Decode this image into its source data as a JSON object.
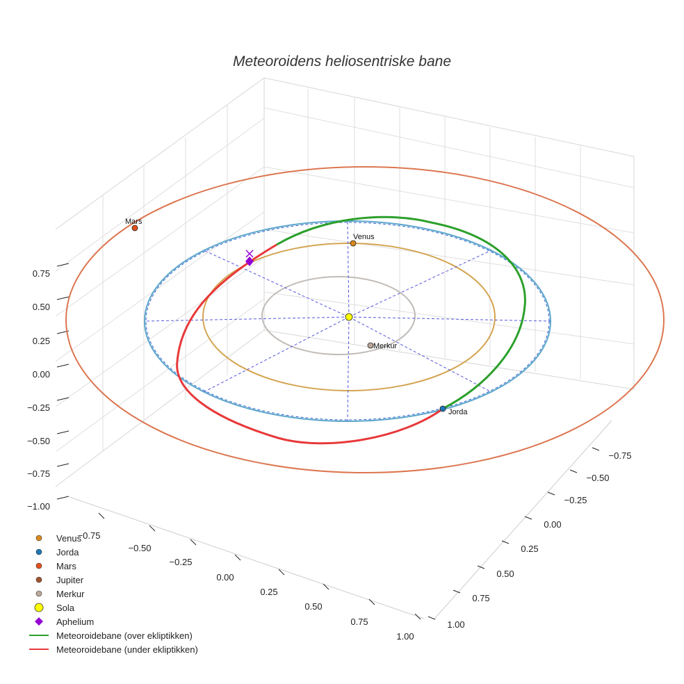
{
  "chart_data": {
    "type": "scatter3d",
    "title": "Meteoroidens heliosentriske bane",
    "axes": {
      "z_ticks": [
        "0.75",
        "0.50",
        "0.25",
        "0.00",
        "−0.25",
        "−0.50",
        "−0.75",
        "−1.00"
      ],
      "x_ticks": [
        "−0.75",
        "−0.50",
        "−0.25",
        "0.00",
        "0.25",
        "0.50",
        "0.75",
        "1.00"
      ],
      "y_ticks": [
        "−0.75",
        "−0.50",
        "−0.25",
        "0.00",
        "0.25",
        "0.50",
        "0.75",
        "1.00"
      ]
    },
    "orbits": [
      {
        "name": "Merkur-bane",
        "radius_au": 0.387,
        "color": "#c0bbb6"
      },
      {
        "name": "Venus-bane",
        "radius_au": 0.723,
        "color": "#d4a451"
      },
      {
        "name": "Jorda-bane",
        "radius_au": 1.0,
        "color": "#5ca6cc"
      },
      {
        "name": "Mars-bane",
        "radius_au": 1.524,
        "color": "#dc7650"
      }
    ],
    "planets": [
      {
        "name": "Venus",
        "label": "Venus",
        "color": "#d98a1e",
        "angle_deg": 90
      },
      {
        "name": "Jorda",
        "label": "Jorda",
        "color": "#1f77b4",
        "angle_deg": -52
      },
      {
        "name": "Mars",
        "label": "Mars",
        "color": "#e0501c",
        "angle_deg": 137
      },
      {
        "name": "Merkur",
        "label": "Merkur",
        "color": "#bca89a",
        "angle_deg": -72
      },
      {
        "name": "Sola",
        "label": "",
        "color": "#ffff00",
        "angle_deg": 0
      }
    ],
    "meteoroid": {
      "perihelion_au": 1.0,
      "aphelion_au": 1.08,
      "inclination_note": "orbit crosses ecliptic at Jorda",
      "above_color": "#2ca02c",
      "below_color": "#e8393a"
    },
    "legend": [
      {
        "label": "Venus",
        "symbol": "circle",
        "color": "#d98a1e"
      },
      {
        "label": "Jorda",
        "symbol": "circle",
        "color": "#1f77b4"
      },
      {
        "label": "Mars",
        "symbol": "circle",
        "color": "#e0501c"
      },
      {
        "label": "Jupiter",
        "symbol": "circle",
        "color": "#a0522d"
      },
      {
        "label": "Merkur",
        "symbol": "circle",
        "color": "#bca89a"
      },
      {
        "label": "Sola",
        "symbol": "big-circle",
        "color": "#ffff00"
      },
      {
        "label": "Aphelium",
        "symbol": "diamond",
        "color": "#9400d3"
      },
      {
        "label": "Meteoroidebane (over ekliptikken)",
        "symbol": "line",
        "color": "#2ca02c"
      },
      {
        "label": "Meteoroidebane (under ekliptikken)",
        "symbol": "line",
        "color": "#e8393a"
      }
    ]
  }
}
